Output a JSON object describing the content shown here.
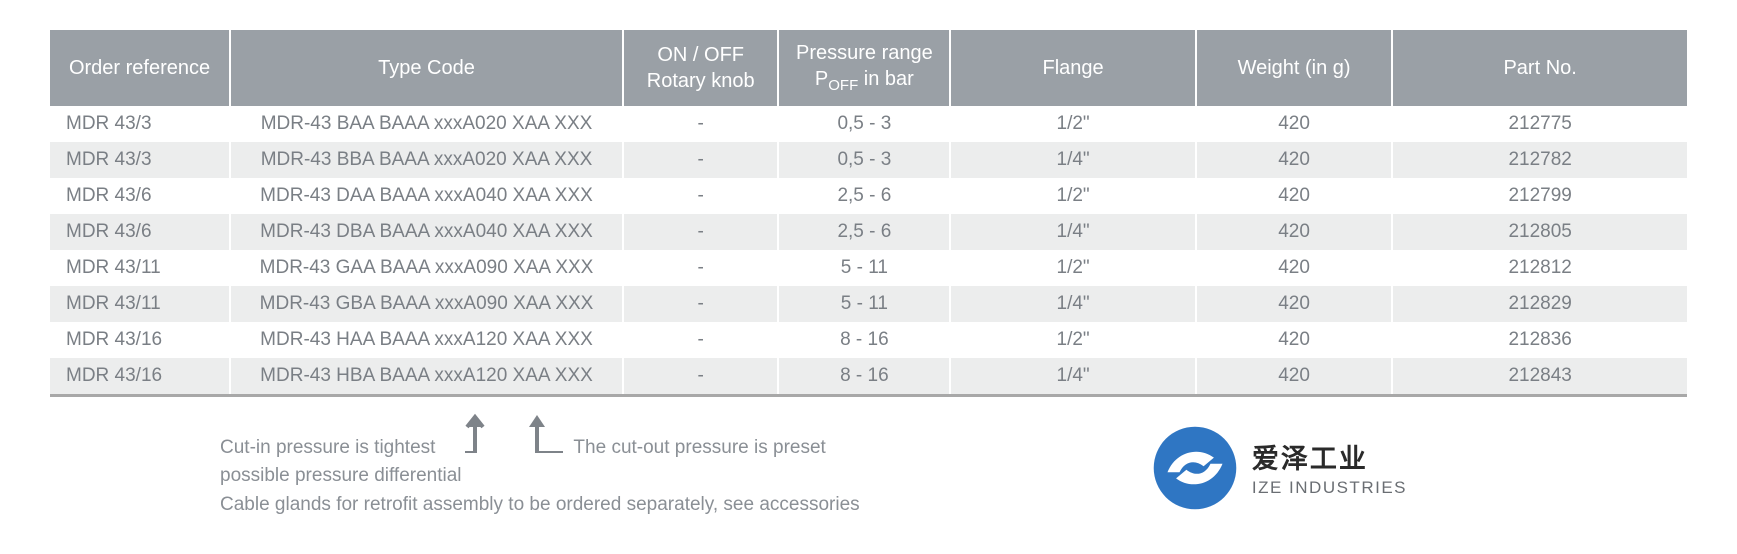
{
  "table": {
    "header_bg": "#9aa0a6",
    "header_fg": "#ffffff",
    "row_alt_bg": "#eceded",
    "row_bg": "#ffffff",
    "cell_fg": "#7a7f85",
    "bottom_border": "#a8a8a8",
    "columns": [
      {
        "key": "order",
        "label": "Order reference",
        "align": "left",
        "width": "11%"
      },
      {
        "key": "type",
        "label": "Type Code",
        "align": "center",
        "width": "24%"
      },
      {
        "key": "knob",
        "label_line1": "ON / OFF",
        "label_line2": "Rotary knob",
        "align": "center",
        "width": "9.5%"
      },
      {
        "key": "press",
        "label_line1": "Pressure range",
        "label_line2_pre": "P",
        "label_line2_sub": "OFF",
        "label_line2_post": " in bar",
        "align": "center",
        "width": "10.5%"
      },
      {
        "key": "flange",
        "label": "Flange",
        "align": "center",
        "width": "15%"
      },
      {
        "key": "weight",
        "label": "Weight (in g)",
        "align": "center",
        "width": "12%"
      },
      {
        "key": "part",
        "label": "Part No.",
        "align": "center",
        "width": "18%"
      }
    ],
    "rows": [
      {
        "order": "MDR 43/3",
        "type": "MDR-43 BAA BAAA xxxA020 XAA XXX",
        "knob": "-",
        "press": "0,5 - 3",
        "flange": "1/2\"",
        "weight": "420",
        "part": "212775"
      },
      {
        "order": "MDR 43/3",
        "type": "MDR-43 BBA BAAA xxxA020 XAA XXX",
        "knob": "-",
        "press": "0,5 - 3",
        "flange": "1/4\"",
        "weight": "420",
        "part": "212782"
      },
      {
        "order": "MDR 43/6",
        "type": "MDR-43 DAA BAAA xxxA040 XAA XXX",
        "knob": "-",
        "press": "2,5 - 6",
        "flange": "1/2\"",
        "weight": "420",
        "part": "212799"
      },
      {
        "order": "MDR 43/6",
        "type": "MDR-43 DBA BAAA xxxA040 XAA XXX",
        "knob": "-",
        "press": "2,5 - 6",
        "flange": "1/4\"",
        "weight": "420",
        "part": "212805"
      },
      {
        "order": "MDR 43/11",
        "type": "MDR-43 GAA BAAA xxxA090 XAA XXX",
        "knob": "-",
        "press": "5 - 11",
        "flange": "1/2\"",
        "weight": "420",
        "part": "212812"
      },
      {
        "order": "MDR 43/11",
        "type": "MDR-43 GBA BAAA xxxA090 XAA XXX",
        "knob": "-",
        "press": "5 - 11",
        "flange": "1/4\"",
        "weight": "420",
        "part": "212829"
      },
      {
        "order": "MDR 43/16",
        "type": "MDR-43 HAA BAAA xxxA120 XAA XXX",
        "knob": "-",
        "press": "8 - 16",
        "flange": "1/2\"",
        "weight": "420",
        "part": "212836"
      },
      {
        "order": "MDR 43/16",
        "type": "MDR-43 HBA BAAA xxxA120 XAA XXX",
        "knob": "-",
        "press": "8 - 16",
        "flange": "1/4\"",
        "weight": "420",
        "part": "212843"
      }
    ]
  },
  "notes": {
    "text_color": "#8a8f95",
    "line1a": "Cut-in pressure is tightest",
    "line1b": "possible pressure differential",
    "arrow2_label": "The cut-out pressure is preset",
    "line3": "Cable glands for retrofit assembly to be ordered separately, see accessories",
    "arrow_color": "#7e8389"
  },
  "logo": {
    "circle_fill": "#2f76c3",
    "cn": "爱泽工业",
    "en": "IZE INDUSTRIES",
    "cn_color": "#2a2a2a",
    "en_color": "#6a6e73"
  }
}
